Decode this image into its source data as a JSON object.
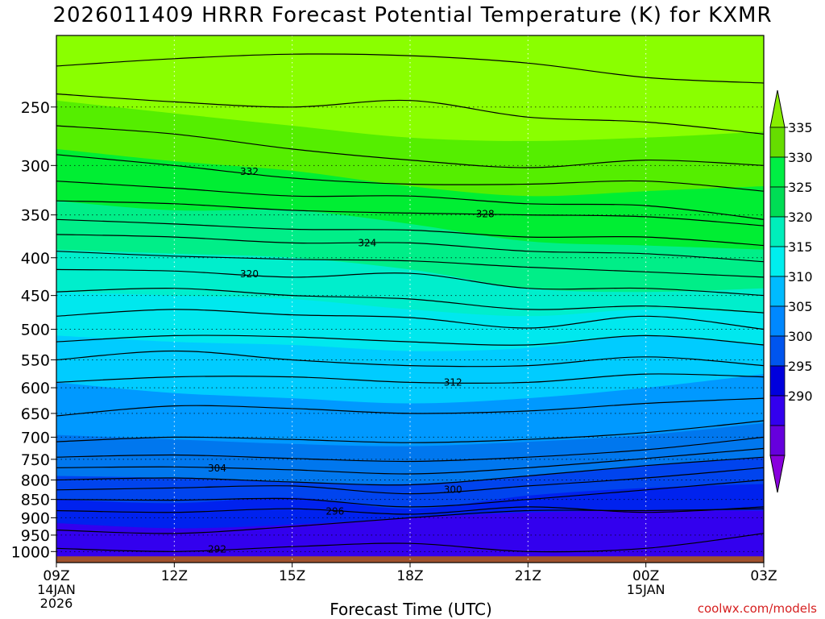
{
  "chart_data": {
    "type": "contour",
    "title": "2026011409 HRRR Forecast Potential Temperature (K) for KXMR",
    "xlabel": "Forecast Time (UTC)",
    "ylabel": "",
    "y_axis": {
      "scale": "log",
      "reversed": true,
      "ylim": [
        1035,
        200
      ],
      "ticks": [
        250,
        300,
        350,
        400,
        450,
        500,
        550,
        600,
        650,
        700,
        750,
        800,
        850,
        900,
        950,
        1000
      ]
    },
    "x_axis": {
      "xlim_hours": [
        0,
        18
      ],
      "ticks": [
        {
          "hour": 0,
          "label": "09Z",
          "sub1": "14JAN",
          "sub2": "2026"
        },
        {
          "hour": 3,
          "label": "12Z",
          "sub1": "",
          "sub2": ""
        },
        {
          "hour": 6,
          "label": "15Z",
          "sub1": "",
          "sub2": ""
        },
        {
          "hour": 9,
          "label": "18Z",
          "sub1": "",
          "sub2": ""
        },
        {
          "hour": 12,
          "label": "21Z",
          "sub1": "",
          "sub2": ""
        },
        {
          "hour": 15,
          "label": "00Z",
          "sub1": "15JAN",
          "sub2": ""
        },
        {
          "hour": 18,
          "label": "03Z",
          "sub1": "",
          "sub2": ""
        }
      ]
    },
    "grid": true,
    "colorbar": {
      "labels": [
        "335",
        "330",
        "325",
        "320",
        "315",
        "310",
        "305",
        "300",
        "295",
        "290"
      ],
      "colors": [
        "#66dd00",
        "#00ee44",
        "#00dd55",
        "#00eebb",
        "#00eeee",
        "#00bbff",
        "#0088ff",
        "#0055ee",
        "#0000dd",
        "#3300ee",
        "#6600dd"
      ],
      "extend": "both"
    },
    "fill_bands": [
      {
        "color": "#8aff00",
        "y": [
          200,
          200,
          200,
          200,
          200,
          200,
          200
        ]
      },
      {
        "color": "#55ee00",
        "y": [
          245,
          255,
          265,
          275,
          278,
          275,
          270
        ]
      },
      {
        "color": "#00ee33",
        "y": [
          285,
          296,
          305,
          320,
          330,
          325,
          320
        ]
      },
      {
        "color": "#00ee88",
        "y": [
          335,
          345,
          345,
          360,
          380,
          385,
          390
        ]
      },
      {
        "color": "#00eecc",
        "y": [
          390,
          395,
          400,
          415,
          440,
          445,
          440
        ]
      },
      {
        "color": "#00e8ee",
        "y": [
          445,
          450,
          455,
          470,
          480,
          470,
          475
        ]
      },
      {
        "color": "#00ccff",
        "y": [
          510,
          520,
          525,
          535,
          530,
          510,
          525
        ]
      },
      {
        "color": "#0099ff",
        "y": [
          590,
          610,
          620,
          630,
          620,
          600,
          575
        ]
      },
      {
        "color": "#0077ee",
        "y": [
          695,
          705,
          715,
          720,
          710,
          695,
          670
        ]
      },
      {
        "color": "#0044ee",
        "y": [
          790,
          795,
          805,
          810,
          790,
          765,
          745
        ]
      },
      {
        "color": "#0022ee",
        "y": [
          850,
          860,
          845,
          875,
          840,
          820,
          810
        ]
      },
      {
        "color": "#3300ee",
        "y": [
          915,
          930,
          920,
          900,
          885,
          880,
          880
        ]
      }
    ],
    "ground": {
      "color": "#a0522d",
      "pressure": 1015
    },
    "contours": [
      {
        "label": "",
        "y": [
          220,
          215,
          212,
          213,
          218,
          228,
          232
        ]
      },
      {
        "label": "",
        "y": [
          240,
          246,
          250,
          245,
          258,
          262,
          272
        ]
      },
      {
        "label": "",
        "y": [
          265,
          272,
          285,
          295,
          302,
          295,
          300
        ]
      },
      {
        "label": "332",
        "y": [
          290,
          300,
          312,
          318,
          318,
          315,
          325
        ]
      },
      {
        "label": "",
        "y": [
          315,
          322,
          330,
          330,
          338,
          340,
          355
        ]
      },
      {
        "label": "328",
        "y": [
          335,
          338,
          345,
          348,
          350,
          352,
          362
        ]
      },
      {
        "label": "",
        "y": [
          355,
          360,
          366,
          367,
          375,
          375,
          385
        ]
      },
      {
        "label": "324",
        "y": [
          372,
          375,
          382,
          382,
          392,
          395,
          405
        ]
      },
      {
        "label": "",
        "y": [
          392,
          398,
          402,
          404,
          412,
          418,
          425
        ]
      },
      {
        "label": "320",
        "y": [
          415,
          417,
          425,
          420,
          440,
          440,
          450
        ]
      },
      {
        "label": "",
        "y": [
          445,
          440,
          450,
          455,
          470,
          465,
          475
        ]
      },
      {
        "label": "",
        "y": [
          480,
          470,
          478,
          482,
          498,
          480,
          500
        ]
      },
      {
        "label": "",
        "y": [
          520,
          510,
          512,
          520,
          525,
          510,
          525
        ]
      },
      {
        "label": "",
        "y": [
          550,
          535,
          550,
          560,
          560,
          545,
          560
        ]
      },
      {
        "label": "312",
        "y": [
          590,
          580,
          580,
          590,
          590,
          575,
          580
        ]
      },
      {
        "label": "",
        "y": [
          655,
          635,
          640,
          650,
          645,
          630,
          620
        ]
      },
      {
        "label": "",
        "y": [
          710,
          700,
          705,
          712,
          705,
          690,
          665
        ]
      },
      {
        "label": "",
        "y": [
          745,
          740,
          748,
          755,
          745,
          728,
          700
        ]
      },
      {
        "label": "304",
        "y": [
          770,
          768,
          775,
          785,
          770,
          748,
          725
        ]
      },
      {
        "label": "",
        "y": [
          800,
          795,
          805,
          812,
          790,
          765,
          745
        ]
      },
      {
        "label": "300",
        "y": [
          825,
          820,
          815,
          835,
          815,
          795,
          770
        ]
      },
      {
        "label": "",
        "y": [
          850,
          852,
          848,
          870,
          850,
          825,
          800
        ]
      },
      {
        "label": "296",
        "y": [
          880,
          885,
          875,
          890,
          870,
          885,
          870
        ]
      },
      {
        "label": "",
        "y": [
          935,
          945,
          925,
          900,
          880,
          880,
          875
        ]
      },
      {
        "label": "292",
        "y": [
          990,
          1000,
          985,
          975,
          1000,
          990,
          945
        ]
      }
    ]
  },
  "footer": {
    "source": "coolwx.com/models"
  }
}
